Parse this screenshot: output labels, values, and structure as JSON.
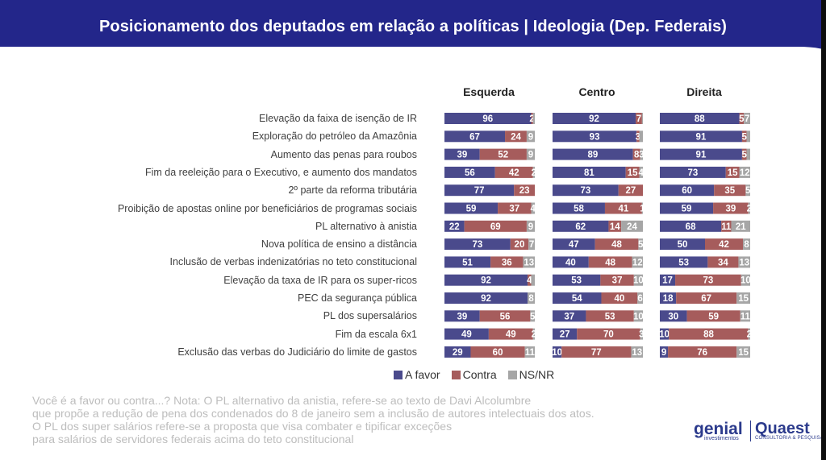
{
  "header": {
    "title": "Posicionamento dos deputados em relação a políticas | Ideologia (Dep. Federais)"
  },
  "colors": {
    "a_favor": "#4a4a8c",
    "contra": "#a65c5c",
    "ns_nr": "#a6a6a6",
    "header": "#23268a"
  },
  "chart_data": {
    "type": "bar",
    "orientation": "horizontal-stacked",
    "panels": [
      "Esquerda",
      "Centro",
      "Direita"
    ],
    "series_names": [
      "A favor",
      "Contra",
      "NS/NR"
    ],
    "categories": [
      "Elevação da faixa de isenção de IR",
      "Exploração do petróleo da Amazônia",
      "Aumento das penas para roubos",
      "Fim da reeleição para o Executivo, e aumento dos mandatos",
      "2º parte da reforma tributária",
      "Proibição de apostas online por beneficiários de programas sociais",
      "PL alternativo à anistia",
      "Nova política de ensino a distância",
      "Inclusão de verbas indenizatórias no teto constitucional",
      "Elevação da taxa de IR para os super-ricos",
      "PEC da segurança pública",
      "PL dos supersalários",
      "Fim da escala 6x1",
      "Exclusão das verbas do Judiciário do limite de gastos"
    ],
    "values": {
      "Esquerda": [
        [
          96,
          2,
          2
        ],
        [
          67,
          24,
          9
        ],
        [
          39,
          52,
          9
        ],
        [
          56,
          42,
          2
        ],
        [
          77,
          23,
          0
        ],
        [
          59,
          37,
          4
        ],
        [
          22,
          69,
          9
        ],
        [
          73,
          20,
          7
        ],
        [
          51,
          36,
          13
        ],
        [
          92,
          4,
          4
        ],
        [
          92,
          0,
          8
        ],
        [
          39,
          56,
          5
        ],
        [
          49,
          49,
          2
        ],
        [
          29,
          60,
          11
        ]
      ],
      "Centro": [
        [
          92,
          7,
          1
        ],
        [
          93,
          3,
          4
        ],
        [
          89,
          8,
          3
        ],
        [
          81,
          15,
          4
        ],
        [
          73,
          27,
          0
        ],
        [
          58,
          41,
          1
        ],
        [
          62,
          14,
          24
        ],
        [
          47,
          48,
          5
        ],
        [
          40,
          48,
          12
        ],
        [
          53,
          37,
          10
        ],
        [
          54,
          40,
          6
        ],
        [
          37,
          53,
          10
        ],
        [
          27,
          70,
          3
        ],
        [
          10,
          77,
          13
        ]
      ],
      "Direita": [
        [
          88,
          5,
          7
        ],
        [
          91,
          5,
          4
        ],
        [
          91,
          5,
          4
        ],
        [
          73,
          15,
          12
        ],
        [
          60,
          35,
          5
        ],
        [
          59,
          39,
          2
        ],
        [
          68,
          11,
          21
        ],
        [
          50,
          42,
          8
        ],
        [
          53,
          34,
          13
        ],
        [
          17,
          73,
          10
        ],
        [
          18,
          67,
          15
        ],
        [
          30,
          59,
          11
        ],
        [
          10,
          88,
          2
        ],
        [
          9,
          76,
          15
        ]
      ]
    },
    "labels": {
      "Esquerda": [
        [
          "96",
          "2",
          ""
        ],
        [
          "67",
          "24",
          "9"
        ],
        [
          "39",
          "52",
          "9"
        ],
        [
          "56",
          "42",
          "2"
        ],
        [
          "77",
          "23",
          ""
        ],
        [
          "59",
          "37",
          "4"
        ],
        [
          "22",
          "69",
          "9"
        ],
        [
          "73",
          "20",
          "7"
        ],
        [
          "51",
          "36",
          "13"
        ],
        [
          "92",
          "4",
          ""
        ],
        [
          "92",
          "",
          "8"
        ],
        [
          "39",
          "56",
          "5"
        ],
        [
          "49",
          "49",
          "2"
        ],
        [
          "29",
          "60",
          "11"
        ]
      ],
      "Centro": [
        [
          "92",
          "7",
          ""
        ],
        [
          "93",
          "3",
          ""
        ],
        [
          "89",
          "8",
          "3"
        ],
        [
          "81",
          "15",
          "4"
        ],
        [
          "73",
          "27",
          ""
        ],
        [
          "58",
          "41",
          "1"
        ],
        [
          "62",
          "14",
          "24"
        ],
        [
          "47",
          "48",
          "5"
        ],
        [
          "40",
          "48",
          "12"
        ],
        [
          "53",
          "37",
          "10"
        ],
        [
          "54",
          "40",
          "6"
        ],
        [
          "37",
          "53",
          "10"
        ],
        [
          "27",
          "70",
          "3"
        ],
        [
          "10",
          "77",
          "13"
        ]
      ],
      "Direita": [
        [
          "88",
          "5",
          "7"
        ],
        [
          "91",
          "5",
          ""
        ],
        [
          "91",
          "5",
          ""
        ],
        [
          "73",
          "15",
          "12"
        ],
        [
          "60",
          "35",
          "5"
        ],
        [
          "59",
          "39",
          "2"
        ],
        [
          "68",
          "11",
          "21"
        ],
        [
          "50",
          "42",
          "8"
        ],
        [
          "53",
          "34",
          "13"
        ],
        [
          "17",
          "73",
          "10"
        ],
        [
          "18",
          "67",
          "15"
        ],
        [
          "30",
          "59",
          "11"
        ],
        [
          "10",
          "88",
          "2"
        ],
        [
          "9",
          "76",
          "15"
        ]
      ]
    },
    "xlim": [
      0,
      100
    ],
    "legend_position": "bottom"
  },
  "legend": {
    "a_favor": "A favor",
    "contra": "Contra",
    "ns_nr": "NS/NR"
  },
  "notes": {
    "line1": "Você é a favor ou contra...? Nota: O PL alternativo da anistia, refere-se ao texto de Davi Alcolumbre",
    "line2": "que propõe a redução de pena dos condenados do 8 de janeiro sem a inclusão de autores intelectuais dos atos.",
    "line3": "O PL dos super salários refere-se a proposta que visa combater e tipificar exceções",
    "line4": "para salários de servidores federais acima do teto constitucional"
  },
  "logos": {
    "genial": "genial",
    "genial_sub": "investimentos",
    "quaest": "Quaest",
    "quaest_sub": "CONSULTORIA & PESQUISA"
  }
}
